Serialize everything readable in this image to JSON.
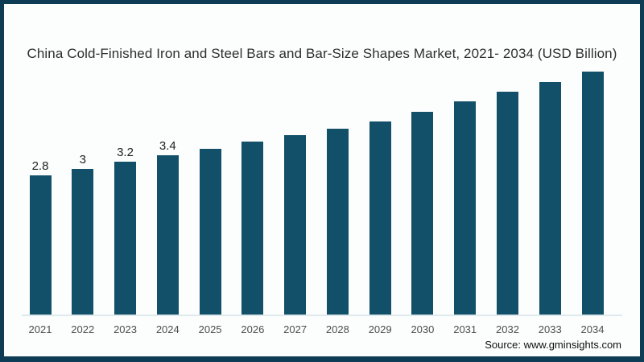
{
  "title": "China Cold-Finished Iron and Steel Bars and Bar-Size Shapes Market, 2021- 2034 (USD Billion)",
  "source": "Source: www.gminsights.com",
  "colors": {
    "bar": "#124f68",
    "frame_border": "#0e3c54",
    "background": "#fcfdfd"
  },
  "chart_data": {
    "type": "bar",
    "title": "China Cold-Finished Iron and Steel Bars and Bar-Size Shapes Market, 2021- 2034 (USD Billion)",
    "categories": [
      "2021",
      "2022",
      "2023",
      "2024",
      "2025",
      "2026",
      "2027",
      "2028",
      "2029",
      "2030",
      "2031",
      "2032",
      "2033",
      "2034"
    ],
    "values": [
      2.8,
      3.0,
      3.2,
      3.4,
      3.6,
      3.8,
      4.0,
      4.2,
      4.4,
      4.7,
      5.0,
      5.3,
      5.6,
      5.9
    ],
    "data_labels": [
      "2.8",
      "3",
      "3.2",
      "3.4",
      null,
      null,
      null,
      null,
      null,
      null,
      null,
      null,
      null,
      null
    ],
    "bar_color": "#124f68",
    "xlabel": "",
    "ylabel": "",
    "y_axis_visible": false,
    "x_axis_visible": true,
    "grid": false,
    "legend": false,
    "source": "Source: www.gminsights.com"
  }
}
